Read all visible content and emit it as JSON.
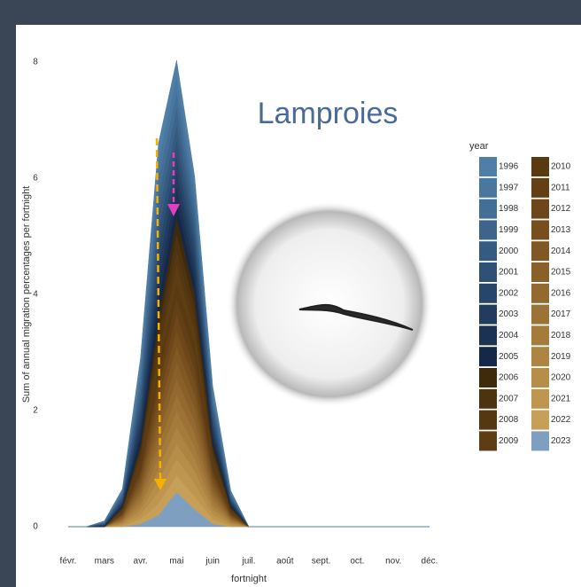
{
  "chart_data": {
    "type": "stacked-area",
    "title": "Lamproies",
    "y_label": "Sum of annual migration percentages per fortnight",
    "x_label": "fortnight",
    "legend_title": "year",
    "categories": [
      "févr.",
      null,
      "mars",
      null,
      "avr.",
      null,
      "mai",
      null,
      "juin",
      null,
      "juil.",
      null,
      "août",
      null,
      "sept.",
      null,
      "oct.",
      null,
      "nov.",
      null,
      "déc."
    ],
    "ylim": [
      0,
      8.2
    ],
    "yticks": [
      0,
      2,
      4,
      6,
      8
    ],
    "grid": false,
    "series": [
      {
        "name": "1996",
        "color": "#4f7fa8",
        "values": [
          0,
          0,
          0.01,
          0.03,
          0.15,
          0.3,
          0.27,
          0.2,
          0.1,
          0.03,
          0,
          0,
          0,
          0,
          0,
          0,
          0,
          0,
          0,
          0,
          0
        ]
      },
      {
        "name": "1997",
        "color": "#4a77a0",
        "values": [
          0,
          0,
          0.01,
          0.03,
          0.14,
          0.3,
          0.27,
          0.19,
          0.1,
          0.03,
          0,
          0,
          0,
          0,
          0,
          0,
          0,
          0,
          0,
          0,
          0
        ]
      },
      {
        "name": "1998",
        "color": "#436e96",
        "values": [
          0,
          0,
          0.01,
          0.03,
          0.15,
          0.31,
          0.27,
          0.2,
          0.09,
          0.02,
          0,
          0,
          0,
          0,
          0,
          0,
          0,
          0,
          0,
          0,
          0
        ]
      },
      {
        "name": "1999",
        "color": "#3d658b",
        "values": [
          0,
          0,
          0.01,
          0.03,
          0.15,
          0.3,
          0.28,
          0.2,
          0.1,
          0.03,
          0,
          0,
          0,
          0,
          0,
          0,
          0,
          0,
          0,
          0,
          0
        ]
      },
      {
        "name": "2000",
        "color": "#365b80",
        "values": [
          0,
          0,
          0.01,
          0.03,
          0.15,
          0.3,
          0.27,
          0.2,
          0.1,
          0.03,
          0,
          0,
          0,
          0,
          0,
          0,
          0,
          0,
          0,
          0,
          0
        ]
      },
      {
        "name": "2001",
        "color": "#2f5175",
        "values": [
          0,
          0,
          0.01,
          0.04,
          0.16,
          0.3,
          0.27,
          0.2,
          0.1,
          0.02,
          0,
          0,
          0,
          0,
          0,
          0,
          0,
          0,
          0,
          0,
          0
        ]
      },
      {
        "name": "2002",
        "color": "#28466a",
        "values": [
          0,
          0,
          0.01,
          0.03,
          0.15,
          0.29,
          0.27,
          0.21,
          0.1,
          0.03,
          0,
          0,
          0,
          0,
          0,
          0,
          0,
          0,
          0,
          0,
          0
        ]
      },
      {
        "name": "2003",
        "color": "#213c5e",
        "values": [
          0,
          0,
          0.01,
          0.03,
          0.15,
          0.3,
          0.27,
          0.2,
          0.1,
          0.03,
          0,
          0,
          0,
          0,
          0,
          0,
          0,
          0,
          0,
          0,
          0
        ]
      },
      {
        "name": "2004",
        "color": "#1b3253",
        "values": [
          0,
          0,
          0.01,
          0.03,
          0.14,
          0.3,
          0.27,
          0.2,
          0.11,
          0.03,
          0,
          0,
          0,
          0,
          0,
          0,
          0,
          0,
          0,
          0,
          0
        ]
      },
      {
        "name": "2005",
        "color": "#142848",
        "values": [
          0,
          0,
          0.01,
          0.03,
          0.15,
          0.3,
          0.26,
          0.2,
          0.1,
          0.03,
          0,
          0,
          0,
          0,
          0,
          0,
          0,
          0,
          0,
          0,
          0
        ]
      },
      {
        "name": "2006",
        "color": "#3f2a0c",
        "values": [
          0,
          0,
          0,
          0.02,
          0.08,
          0.2,
          0.28,
          0.22,
          0.08,
          0.02,
          0,
          0,
          0,
          0,
          0,
          0,
          0,
          0,
          0,
          0,
          0
        ]
      },
      {
        "name": "2007",
        "color": "#4d330f",
        "values": [
          0,
          0,
          0,
          0.02,
          0.08,
          0.2,
          0.28,
          0.22,
          0.08,
          0.02,
          0,
          0,
          0,
          0,
          0,
          0,
          0,
          0,
          0,
          0,
          0
        ]
      },
      {
        "name": "2008",
        "color": "#553812",
        "values": [
          0,
          0,
          0,
          0.02,
          0.09,
          0.21,
          0.27,
          0.21,
          0.08,
          0.02,
          0,
          0,
          0,
          0,
          0,
          0,
          0,
          0,
          0,
          0,
          0
        ]
      },
      {
        "name": "2009",
        "color": "#5d3e14",
        "values": [
          0,
          0,
          0,
          0.02,
          0.08,
          0.2,
          0.28,
          0.22,
          0.08,
          0.02,
          0,
          0,
          0,
          0,
          0,
          0,
          0,
          0,
          0,
          0,
          0
        ]
      },
      {
        "name": "2010",
        "color": "#5a3a10",
        "values": [
          0,
          0,
          0,
          0.02,
          0.08,
          0.2,
          0.28,
          0.22,
          0.08,
          0.02,
          0,
          0,
          0,
          0,
          0,
          0,
          0,
          0,
          0,
          0,
          0
        ]
      },
      {
        "name": "2011",
        "color": "#633f15",
        "values": [
          0,
          0,
          0,
          0.02,
          0.08,
          0.19,
          0.28,
          0.23,
          0.08,
          0.02,
          0,
          0,
          0,
          0,
          0,
          0,
          0,
          0,
          0,
          0,
          0
        ]
      },
      {
        "name": "2012",
        "color": "#6d471a",
        "values": [
          0,
          0,
          0,
          0.02,
          0.08,
          0.2,
          0.28,
          0.22,
          0.08,
          0.02,
          0,
          0,
          0,
          0,
          0,
          0,
          0,
          0,
          0,
          0,
          0
        ]
      },
      {
        "name": "2013",
        "color": "#774f1f",
        "values": [
          0,
          0,
          0,
          0.02,
          0.08,
          0.2,
          0.27,
          0.22,
          0.09,
          0.02,
          0,
          0,
          0,
          0,
          0,
          0,
          0,
          0,
          0,
          0,
          0
        ]
      },
      {
        "name": "2014",
        "color": "#805824",
        "values": [
          0,
          0,
          0,
          0.02,
          0.08,
          0.2,
          0.28,
          0.22,
          0.08,
          0.02,
          0,
          0,
          0,
          0,
          0,
          0,
          0,
          0,
          0,
          0,
          0
        ]
      },
      {
        "name": "2015",
        "color": "#8a602a",
        "values": [
          0,
          0,
          0,
          0.02,
          0.08,
          0.2,
          0.28,
          0.22,
          0.08,
          0.02,
          0,
          0,
          0,
          0,
          0,
          0,
          0,
          0,
          0,
          0,
          0
        ]
      },
      {
        "name": "2016",
        "color": "#936930",
        "values": [
          0,
          0,
          0,
          0.02,
          0.07,
          0.2,
          0.28,
          0.22,
          0.08,
          0.02,
          0,
          0,
          0,
          0,
          0,
          0,
          0,
          0,
          0,
          0,
          0
        ]
      },
      {
        "name": "2017",
        "color": "#9c7236",
        "values": [
          0,
          0,
          0,
          0.02,
          0.08,
          0.2,
          0.28,
          0.22,
          0.08,
          0.02,
          0,
          0,
          0,
          0,
          0,
          0,
          0,
          0,
          0,
          0,
          0
        ]
      },
      {
        "name": "2018",
        "color": "#a57b3c",
        "values": [
          0,
          0,
          0,
          0.02,
          0.08,
          0.21,
          0.28,
          0.21,
          0.08,
          0.02,
          0,
          0,
          0,
          0,
          0,
          0,
          0,
          0,
          0,
          0,
          0
        ]
      },
      {
        "name": "2019",
        "color": "#ae8442",
        "values": [
          0,
          0,
          0,
          0.02,
          0.08,
          0.2,
          0.28,
          0.22,
          0.08,
          0.02,
          0,
          0,
          0,
          0,
          0,
          0,
          0,
          0,
          0,
          0,
          0
        ]
      },
      {
        "name": "2020",
        "color": "#b68d49",
        "values": [
          0,
          0,
          0,
          0.02,
          0.08,
          0.2,
          0.27,
          0.22,
          0.08,
          0.02,
          0,
          0,
          0,
          0,
          0,
          0,
          0,
          0,
          0,
          0,
          0
        ]
      },
      {
        "name": "2021",
        "color": "#be9650",
        "values": [
          0,
          0,
          0,
          0.02,
          0.08,
          0.2,
          0.28,
          0.22,
          0.08,
          0.02,
          0,
          0,
          0,
          0,
          0,
          0,
          0,
          0,
          0,
          0,
          0
        ]
      },
      {
        "name": "2022",
        "color": "#c69f58",
        "values": [
          0,
          0,
          0,
          0.02,
          0.08,
          0.2,
          0.28,
          0.22,
          0.08,
          0.02,
          0,
          0,
          0,
          0,
          0,
          0,
          0,
          0,
          0,
          0,
          0
        ]
      },
      {
        "name": "2023",
        "color": "#7f9fc0",
        "values": [
          0,
          0,
          0,
          0,
          0.05,
          0.2,
          0.6,
          0.3,
          0.05,
          0,
          0,
          0,
          0,
          0,
          0,
          0,
          0,
          0,
          0,
          0,
          0
        ]
      }
    ]
  }
}
